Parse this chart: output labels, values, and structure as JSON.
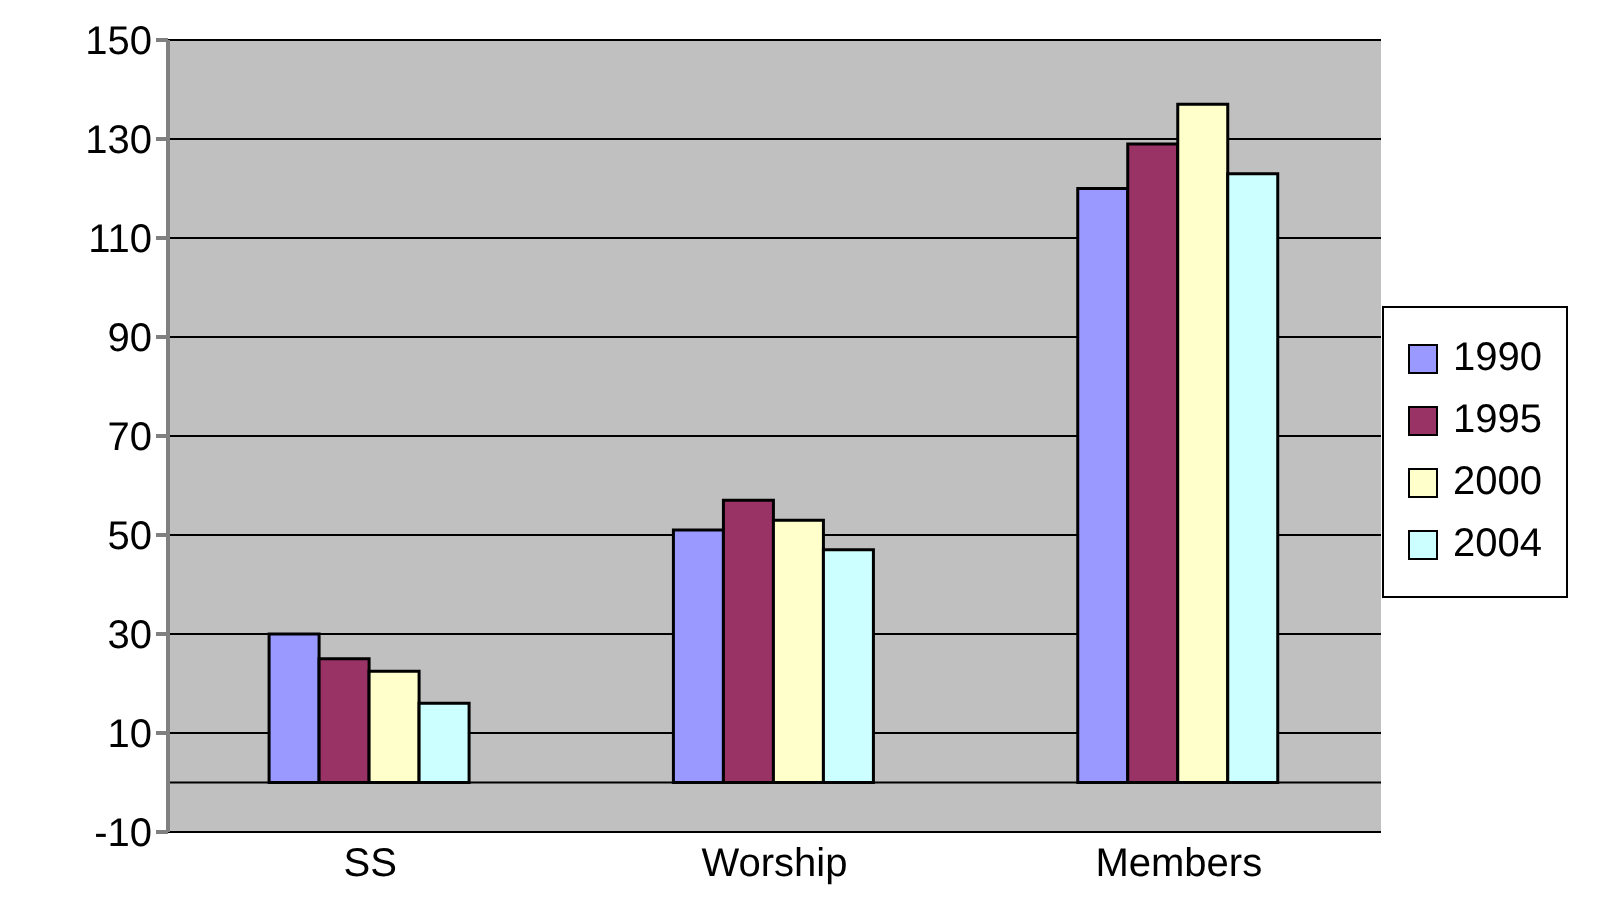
{
  "chart_data": {
    "type": "bar",
    "categories": [
      "SS",
      "Worship",
      "Members"
    ],
    "series": [
      {
        "name": "1990",
        "color": "#9999ff",
        "values": [
          30,
          51,
          120
        ]
      },
      {
        "name": "1995",
        "color": "#993366",
        "values": [
          25,
          57,
          129
        ]
      },
      {
        "name": "2000",
        "color": "#ffffcc",
        "values": [
          22.5,
          53,
          137
        ]
      },
      {
        "name": "2004",
        "color": "#ccffff",
        "values": [
          16,
          47,
          123
        ]
      }
    ],
    "ylim": [
      -10,
      150
    ],
    "yticks": [
      -10,
      10,
      30,
      50,
      70,
      90,
      110,
      130,
      150
    ],
    "grid": "y",
    "legend": "right"
  }
}
